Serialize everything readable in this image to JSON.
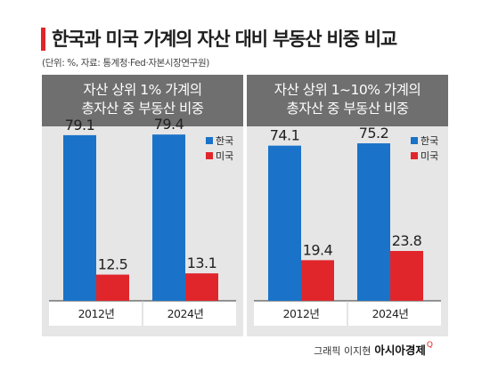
{
  "title": "한국과 미국 가계의 자산 대비 부동산 비중 비교",
  "source": "(단위: %, 자료: 통계청·Fed·자본시장연구원)",
  "colors": {
    "korea": "#1a73c8",
    "usa": "#e0262b",
    "header": "#6f6f6f",
    "panel": "#e6e6e6",
    "accent": "#e0262b"
  },
  "chart_data": [
    {
      "type": "bar",
      "title_line1": "자산 상위 1% 가계의",
      "title_line2": "총자산 중 부동산 비중",
      "categories": [
        "2012년",
        "2024년"
      ],
      "series": [
        {
          "name": "한국",
          "values": [
            79.1,
            79.4
          ]
        },
        {
          "name": "미국",
          "values": [
            12.5,
            13.1
          ]
        }
      ],
      "value_labels": {
        "한국": [
          "79.1",
          "79.4"
        ],
        "미국": [
          "12.5",
          "13.1"
        ]
      },
      "ylim": [
        0,
        85
      ],
      "legend": "top-right"
    },
    {
      "type": "bar",
      "title_line1": "자산 상위 1~10% 가계의",
      "title_line2": "총자산 중 부동산 비중",
      "categories": [
        "2012년",
        "2024년"
      ],
      "series": [
        {
          "name": "한국",
          "values": [
            74.1,
            75.2
          ]
        },
        {
          "name": "미국",
          "values": [
            19.4,
            23.8
          ]
        }
      ],
      "value_labels": {
        "한국": [
          "74.1",
          "75.2"
        ],
        "미국": [
          "19.4",
          "23.8"
        ]
      },
      "ylim": [
        0,
        85
      ],
      "legend": "top-right"
    }
  ],
  "credit": {
    "text": "그래픽 이지현",
    "brand": "아시아경제",
    "mark": "Q"
  }
}
